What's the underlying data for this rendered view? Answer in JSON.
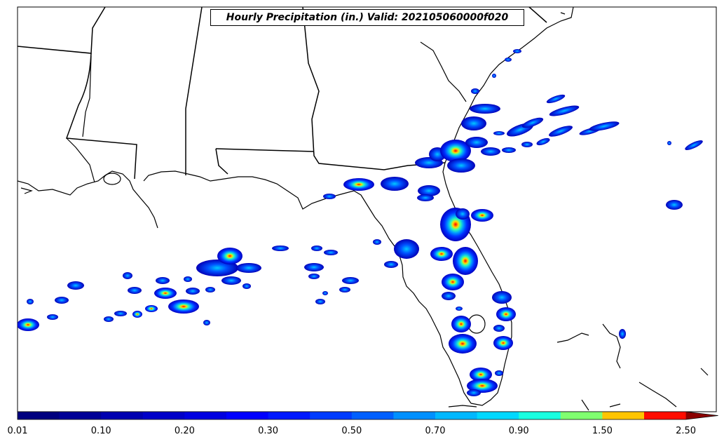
{
  "title": "Hourly Precipitation (in.) Valid: 202105060000f020",
  "colorbar": {
    "labels": [
      "0.01",
      "0.10",
      "0.20",
      "0.30",
      "0.50",
      "0.70",
      "0.90",
      "1.50",
      "2.50"
    ],
    "colors": [
      "#00007f",
      "#000096",
      "#0000b0",
      "#0000c8",
      "#0000e0",
      "#0000ff",
      "#0018ff",
      "#003cff",
      "#0060ff",
      "#0090ff",
      "#00b8ff",
      "#00d8ff",
      "#18ffe0",
      "#80ff70",
      "#ffc400",
      "#ff0c00",
      "#8b0000"
    ]
  }
}
